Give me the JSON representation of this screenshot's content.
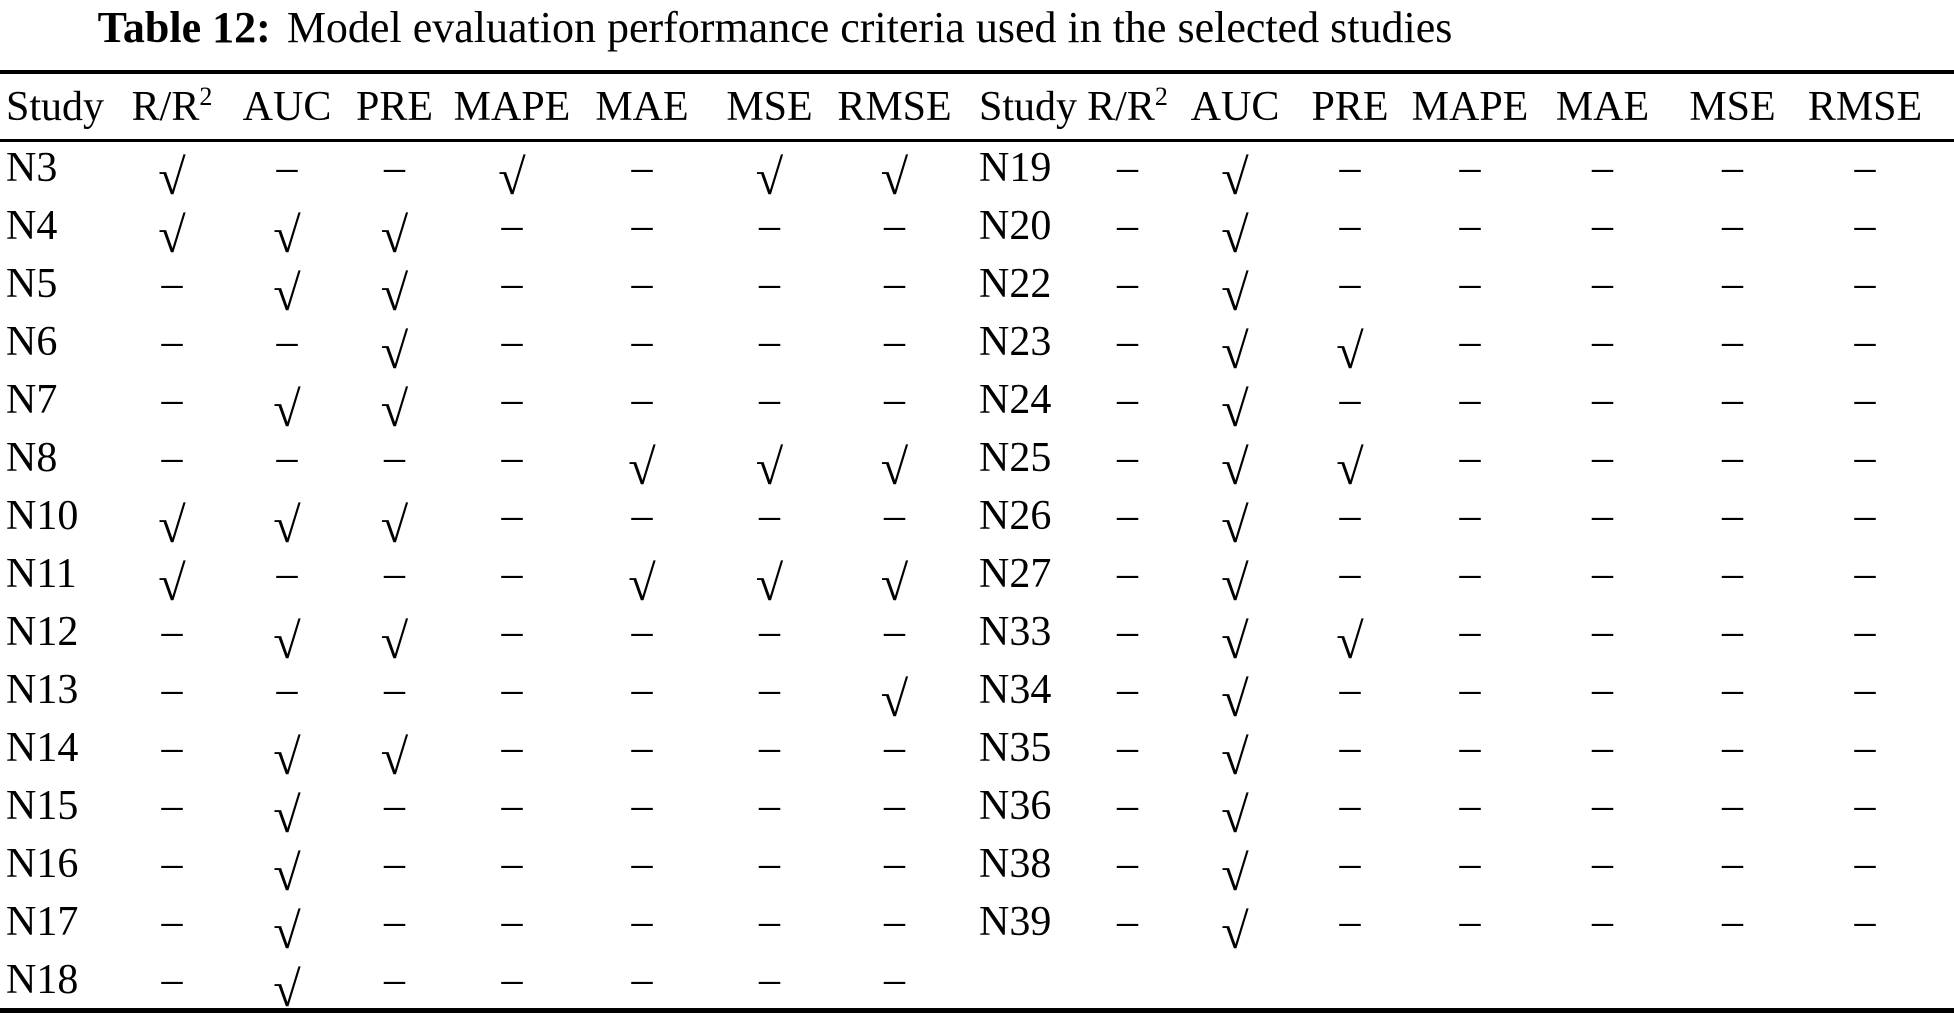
{
  "page": {
    "background_color": "#ffffff",
    "text_color": "#000000"
  },
  "title": {
    "label": "Table 12:",
    "text": "Model evaluation performance criteria used in the selected studies"
  },
  "symbols": {
    "check": "√",
    "dash": "–"
  },
  "columns": [
    {
      "text": "Study",
      "sup": ""
    },
    {
      "text": "R/R",
      "sup": "2"
    },
    {
      "text": "AUC",
      "sup": ""
    },
    {
      "text": "PRE",
      "sup": ""
    },
    {
      "text": "MAPE",
      "sup": ""
    },
    {
      "text": "MAE",
      "sup": ""
    },
    {
      "text": "MSE",
      "sup": ""
    },
    {
      "text": "RMSE",
      "sup": ""
    }
  ],
  "left_table": {
    "rows": [
      {
        "study": "N3",
        "criteria": [
          "check",
          "dash",
          "dash",
          "check",
          "dash",
          "check",
          "check"
        ]
      },
      {
        "study": "N4",
        "criteria": [
          "check",
          "check",
          "check",
          "dash",
          "dash",
          "dash",
          "dash"
        ]
      },
      {
        "study": "N5",
        "criteria": [
          "dash",
          "check",
          "check",
          "dash",
          "dash",
          "dash",
          "dash"
        ]
      },
      {
        "study": "N6",
        "criteria": [
          "dash",
          "dash",
          "check",
          "dash",
          "dash",
          "dash",
          "dash"
        ]
      },
      {
        "study": "N7",
        "criteria": [
          "dash",
          "check",
          "check",
          "dash",
          "dash",
          "dash",
          "dash"
        ]
      },
      {
        "study": "N8",
        "criteria": [
          "dash",
          "dash",
          "dash",
          "dash",
          "check",
          "check",
          "check"
        ]
      },
      {
        "study": "N10",
        "criteria": [
          "check",
          "check",
          "check",
          "dash",
          "dash",
          "dash",
          "dash"
        ]
      },
      {
        "study": "N11",
        "criteria": [
          "check",
          "dash",
          "dash",
          "dash",
          "check",
          "check",
          "check"
        ]
      },
      {
        "study": "N12",
        "criteria": [
          "dash",
          "check",
          "check",
          "dash",
          "dash",
          "dash",
          "dash"
        ]
      },
      {
        "study": "N13",
        "criteria": [
          "dash",
          "dash",
          "dash",
          "dash",
          "dash",
          "dash",
          "check"
        ]
      },
      {
        "study": "N14",
        "criteria": [
          "dash",
          "check",
          "check",
          "dash",
          "dash",
          "dash",
          "dash"
        ]
      },
      {
        "study": "N15",
        "criteria": [
          "dash",
          "check",
          "dash",
          "dash",
          "dash",
          "dash",
          "dash"
        ]
      },
      {
        "study": "N16",
        "criteria": [
          "dash",
          "check",
          "dash",
          "dash",
          "dash",
          "dash",
          "dash"
        ]
      },
      {
        "study": "N17",
        "criteria": [
          "dash",
          "check",
          "dash",
          "dash",
          "dash",
          "dash",
          "dash"
        ]
      },
      {
        "study": "N18",
        "criteria": [
          "dash",
          "check",
          "dash",
          "dash",
          "dash",
          "dash",
          "dash"
        ]
      }
    ]
  },
  "right_table": {
    "rows": [
      {
        "study": "N19",
        "criteria": [
          "dash",
          "check",
          "dash",
          "dash",
          "dash",
          "dash",
          "dash"
        ]
      },
      {
        "study": "N20",
        "criteria": [
          "dash",
          "check",
          "dash",
          "dash",
          "dash",
          "dash",
          "dash"
        ]
      },
      {
        "study": "N22",
        "criteria": [
          "dash",
          "check",
          "dash",
          "dash",
          "dash",
          "dash",
          "dash"
        ]
      },
      {
        "study": "N23",
        "criteria": [
          "dash",
          "check",
          "check",
          "dash",
          "dash",
          "dash",
          "dash"
        ]
      },
      {
        "study": "N24",
        "criteria": [
          "dash",
          "check",
          "dash",
          "dash",
          "dash",
          "dash",
          "dash"
        ]
      },
      {
        "study": "N25",
        "criteria": [
          "dash",
          "check",
          "check",
          "dash",
          "dash",
          "dash",
          "dash"
        ]
      },
      {
        "study": "N26",
        "criteria": [
          "dash",
          "check",
          "dash",
          "dash",
          "dash",
          "dash",
          "dash"
        ]
      },
      {
        "study": "N27",
        "criteria": [
          "dash",
          "check",
          "dash",
          "dash",
          "dash",
          "dash",
          "dash"
        ]
      },
      {
        "study": "N33",
        "criteria": [
          "dash",
          "check",
          "check",
          "dash",
          "dash",
          "dash",
          "dash"
        ]
      },
      {
        "study": "N34",
        "criteria": [
          "dash",
          "check",
          "dash",
          "dash",
          "dash",
          "dash",
          "dash"
        ]
      },
      {
        "study": "N35",
        "criteria": [
          "dash",
          "check",
          "dash",
          "dash",
          "dash",
          "dash",
          "dash"
        ]
      },
      {
        "study": "N36",
        "criteria": [
          "dash",
          "check",
          "dash",
          "dash",
          "dash",
          "dash",
          "dash"
        ]
      },
      {
        "study": "N38",
        "criteria": [
          "dash",
          "check",
          "dash",
          "dash",
          "dash",
          "dash",
          "dash"
        ]
      },
      {
        "study": "N39",
        "criteria": [
          "dash",
          "check",
          "dash",
          "dash",
          "dash",
          "dash",
          "dash"
        ]
      }
    ]
  }
}
